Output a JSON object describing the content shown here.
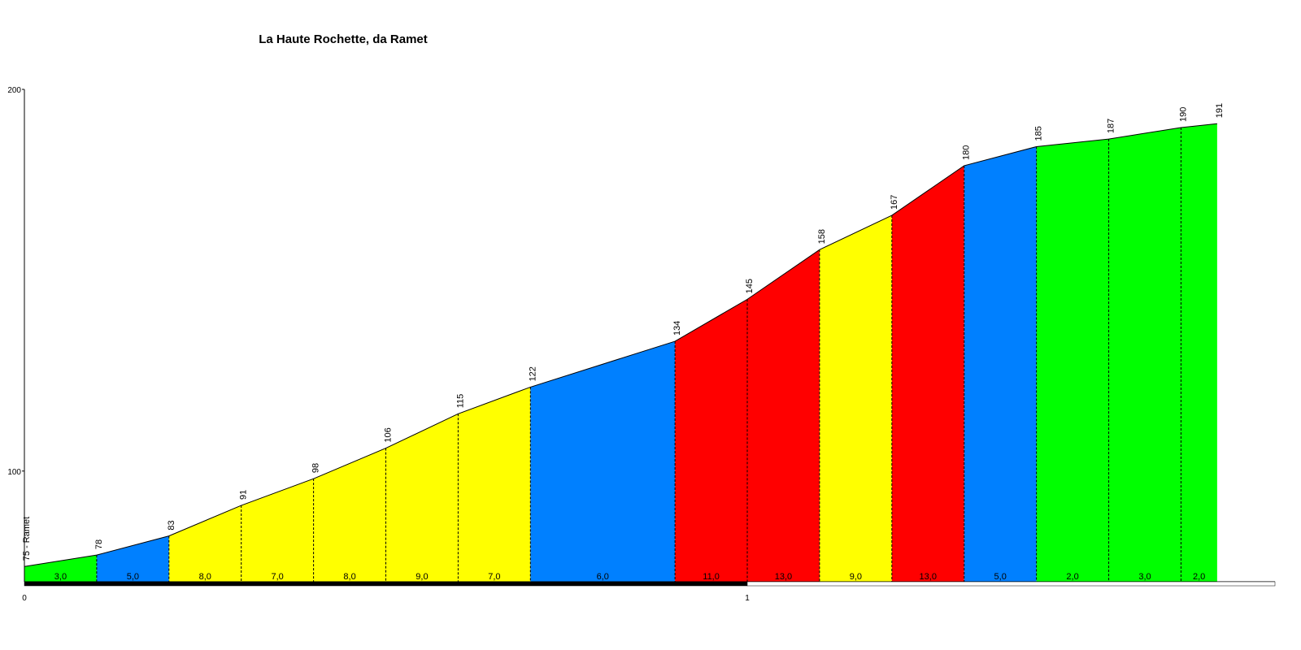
{
  "chart_data": {
    "type": "climb-profile",
    "title": "La Haute Rochette, da Ramet",
    "x": [
      0,
      0.1,
      0.2,
      0.3,
      0.4,
      0.5,
      0.6,
      0.7,
      0.9,
      1.0,
      1.1,
      1.2,
      1.3,
      1.4,
      1.5,
      1.6,
      1.65
    ],
    "series": [
      {
        "name": "altitude",
        "color": "#000000",
        "values": [
          75,
          78,
          83,
          91,
          98,
          106,
          115,
          122,
          134,
          145,
          158,
          167,
          180,
          185,
          187,
          190,
          191
        ],
        "value_labels": [
          "75 - Ramet",
          "78",
          "83",
          "91",
          "98",
          "106",
          "115",
          "122",
          "134",
          "145",
          "158",
          "167",
          "180",
          "185",
          "187",
          "190",
          "191"
        ]
      }
    ],
    "gradients": {
      "values": [
        3,
        5,
        8,
        7,
        8,
        9,
        7,
        6,
        11,
        13,
        9,
        13,
        5,
        2,
        3,
        2
      ],
      "value_labels": [
        "3,0",
        "5,0",
        "8,0",
        "7,0",
        "8,0",
        "9,0",
        "7,0",
        "6,0",
        "11,0",
        "13,0",
        "9,0",
        "13,0",
        "5,0",
        "2,0",
        "3,0",
        "2,0"
      ],
      "colors": [
        "#00ff00",
        "#0080ff",
        "#ffff00",
        "#ffff00",
        "#ffff00",
        "#ffff00",
        "#ffff00",
        "#0080ff",
        "#ff0000",
        "#ff0000",
        "#ffff00",
        "#ff0000",
        "#0080ff",
        "#00ff00",
        "#00ff00",
        "#00ff00"
      ]
    },
    "xlim": [
      0,
      1.73
    ],
    "xticks": [
      0,
      1
    ],
    "ylim": [
      71,
      200
    ],
    "yticks": [
      100,
      200
    ]
  }
}
